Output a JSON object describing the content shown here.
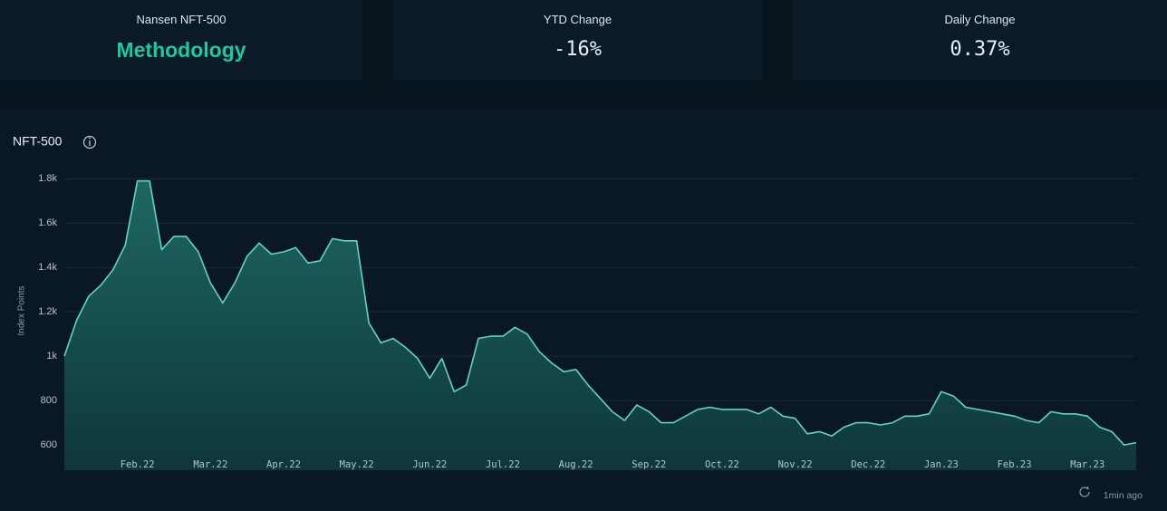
{
  "cards": [
    {
      "title": "Nansen NFT-500",
      "value": "Methodology"
    },
    {
      "title": "YTD Change",
      "value": "-16%"
    },
    {
      "title": "Daily Change",
      "value": "0.37%"
    }
  ],
  "updated": "1min ago",
  "chart_data": {
    "type": "area",
    "title": "NFT-500",
    "y_label": "Index Points",
    "color": "#5cd6c6",
    "categories": [
      null,
      null,
      null,
      null,
      null,
      null,
      "Feb.22",
      null,
      null,
      null,
      null,
      null,
      "Mar.22",
      null,
      null,
      null,
      null,
      null,
      "Apr.22",
      null,
      null,
      null,
      null,
      null,
      "May.22",
      null,
      null,
      null,
      null,
      null,
      "Jun.22",
      null,
      null,
      null,
      null,
      null,
      "Jul.22",
      null,
      null,
      null,
      null,
      null,
      "Aug.22",
      null,
      null,
      null,
      null,
      null,
      "Sep.22",
      null,
      null,
      null,
      null,
      null,
      "Oct.22",
      null,
      null,
      null,
      null,
      null,
      "Nov.22",
      null,
      null,
      null,
      null,
      null,
      "Dec.22",
      null,
      null,
      null,
      null,
      null,
      "Jan.23",
      null,
      null,
      null,
      null,
      null,
      "Feb.23",
      null,
      null,
      null,
      null,
      null,
      "Mar.23",
      null,
      null,
      null,
      null
    ],
    "values": [
      1000,
      1160,
      1270,
      1320,
      1390,
      1500,
      1790,
      1790,
      1480,
      1540,
      1540,
      1470,
      1330,
      1240,
      1330,
      1450,
      1510,
      1460,
      1470,
      1490,
      1420,
      1430,
      1530,
      1520,
      1520,
      1150,
      1060,
      1080,
      1040,
      990,
      900,
      990,
      840,
      870,
      1080,
      1090,
      1090,
      1130,
      1100,
      1020,
      970,
      930,
      940,
      870,
      810,
      750,
      710,
      780,
      750,
      700,
      700,
      730,
      760,
      770,
      760,
      760,
      760,
      740,
      770,
      730,
      720,
      650,
      660,
      640,
      680,
      700,
      700,
      690,
      700,
      730,
      730,
      740,
      840,
      820,
      770,
      760,
      750,
      740,
      730,
      710,
      700,
      750,
      740,
      740,
      730,
      680,
      660,
      600,
      610
    ],
    "ylim": [
      486,
      1850
    ],
    "yticks": [
      600,
      800,
      {
        "value": 1000,
        "label": "1k"
      },
      {
        "value": 1200,
        "label": "1.2k"
      },
      {
        "value": 1400,
        "label": "1.4k"
      },
      {
        "value": 1600,
        "label": "1.6k"
      },
      {
        "value": 1800,
        "label": "1.8k"
      }
    ],
    "grid": true
  }
}
